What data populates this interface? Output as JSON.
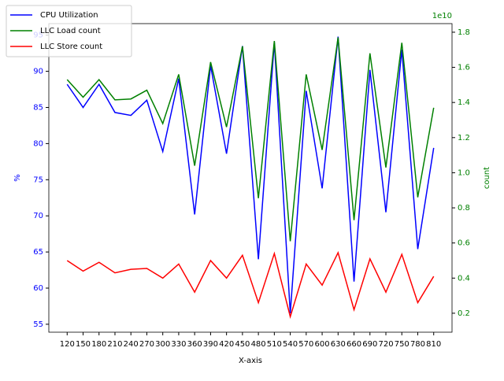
{
  "chart_data": {
    "type": "line",
    "xlabel": "X-axis",
    "ylabel": "%",
    "y2label": "count",
    "y2_offset_label": "1e10",
    "categories": [
      "120",
      "150",
      "180",
      "210",
      "240",
      "270",
      "300",
      "330",
      "360",
      "390",
      "420",
      "450",
      "480",
      "510",
      "540",
      "570",
      "600",
      "630",
      "660",
      "690",
      "720",
      "750",
      "780",
      "810"
    ],
    "ylim": [
      53.9,
      96.6
    ],
    "yticks": [
      55,
      60,
      65,
      70,
      75,
      80,
      85,
      90,
      95
    ],
    "y2lim": [
      920000000,
      18490000000
    ],
    "y2ticks": [
      {
        "value": 2000000000,
        "label": "0.2"
      },
      {
        "value": 4000000000,
        "label": "0.4"
      },
      {
        "value": 6000000000,
        "label": "0.6"
      },
      {
        "value": 8000000000,
        "label": "0.8"
      },
      {
        "value": 10000000000,
        "label": "1.0"
      },
      {
        "value": 12000000000,
        "label": "1.2"
      },
      {
        "value": 14000000000,
        "label": "1.4"
      },
      {
        "value": 16000000000,
        "label": "1.6"
      },
      {
        "value": 18000000000,
        "label": "1.8"
      }
    ],
    "legend": "upper left",
    "ycolor": "#0000ff",
    "y2color": "#008000",
    "series": [
      {
        "name": "CPU Utilization",
        "color": "#0000ff",
        "axis": "y",
        "values": [
          88.2,
          85,
          88.2,
          84.3,
          83.9,
          86,
          78.9,
          89,
          70.2,
          90.8,
          78.6,
          93.5,
          64,
          94,
          56.5,
          87.3,
          73.8,
          94.8,
          60.9,
          90.2,
          70.5,
          93,
          65.4,
          79.4
        ]
      },
      {
        "name": "LLC Load count",
        "color": "#008000",
        "axis": "y2",
        "values": [
          15300000000,
          14300000000,
          15300000000,
          14150000000,
          14200000000,
          14700000000,
          12800000000,
          15600000000,
          10400000000,
          16300000000,
          12600000000,
          17200000000,
          8550000000,
          17500000000,
          6100000000,
          15600000000,
          11300000000,
          17700000000,
          7300000000,
          16800000000,
          10300000000,
          17400000000,
          8600000000,
          13700000000
        ]
      },
      {
        "name": "LLC Store count",
        "color": "#ff0000",
        "axis": "y2",
        "values": [
          5000000000,
          4400000000,
          4900000000,
          4300000000,
          4500000000,
          4550000000,
          4000000000,
          4800000000,
          3200000000,
          5000000000,
          4000000000,
          5300000000,
          2600000000,
          5400000000,
          1800000000,
          4800000000,
          3600000000,
          5450000000,
          2200000000,
          5100000000,
          3200000000,
          5350000000,
          2600000000,
          4100000000
        ]
      }
    ]
  }
}
